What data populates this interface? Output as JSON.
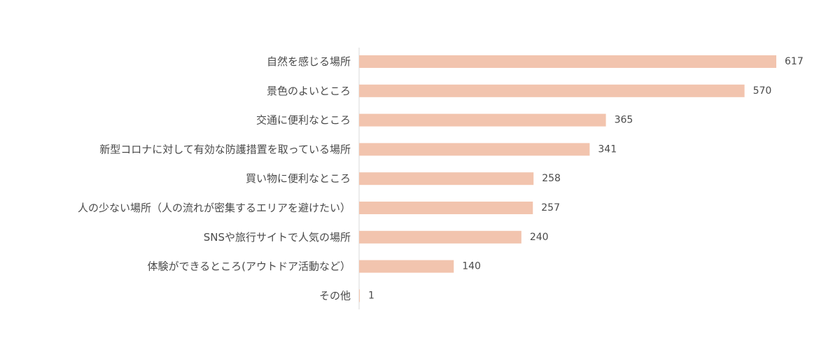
{
  "chart_data": {
    "type": "bar",
    "orientation": "horizontal",
    "categories": [
      "自然を感じる場所",
      "景色のよいところ",
      "交通に便利なところ",
      "新型コロナに対して有効な防護措置を取っている場所",
      "買い物に便利なところ",
      "人の少ない場所（人の流れが密集するエリアを避けたい）",
      "SNSや旅行サイトで人気の場所",
      "体験ができるところ(アウトドア活動など）",
      "その他"
    ],
    "values": [
      617,
      570,
      365,
      341,
      258,
      257,
      240,
      140,
      1
    ],
    "title": "",
    "xlabel": "",
    "ylabel": "",
    "xlim": [
      0,
      617
    ],
    "grid": false,
    "legend": "none",
    "bar_color": "#f2c4ae",
    "axis_color": "#d9d9d9",
    "text_color": "#4a4a4a"
  }
}
